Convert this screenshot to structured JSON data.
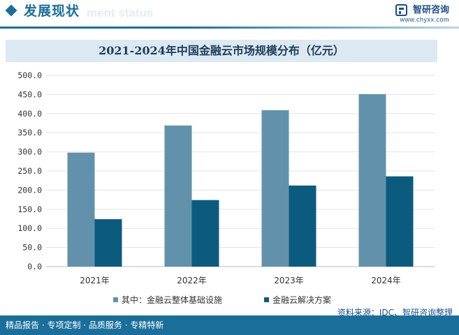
{
  "header": {
    "section_title": "发展现状",
    "section_subtitle": "ment status",
    "brand_name": "智研咨询",
    "brand_url": "www.chyxx.com"
  },
  "source_text": "资料来源：IDC、智研咨询整理",
  "footer_text": "精品报告 · 专项定制 · 品质服务 · 专精特新",
  "colors": {
    "series1": "#6292ab",
    "series2": "#0b5b7f",
    "accent": "#1a6f9a",
    "title_band": "#dbe9f2"
  },
  "chart_data": {
    "type": "bar",
    "title": "2021-2024年中国金融云市场规模分布（亿元）",
    "categories": [
      "2021年",
      "2022年",
      "2023年",
      "2024年"
    ],
    "series": [
      {
        "name": "其中：金融云整体基础设施",
        "values": [
          298,
          369,
          409,
          451
        ]
      },
      {
        "name": "金融云解决方案",
        "values": [
          124,
          174,
          212,
          236
        ]
      }
    ],
    "ylim": [
      0,
      500
    ],
    "yticks": [
      "0.0",
      "50.0",
      "100.0",
      "150.0",
      "200.0",
      "250.0",
      "300.0",
      "350.0",
      "400.0",
      "450.0",
      "500.0"
    ],
    "grid": true,
    "legend_position": "bottom"
  }
}
